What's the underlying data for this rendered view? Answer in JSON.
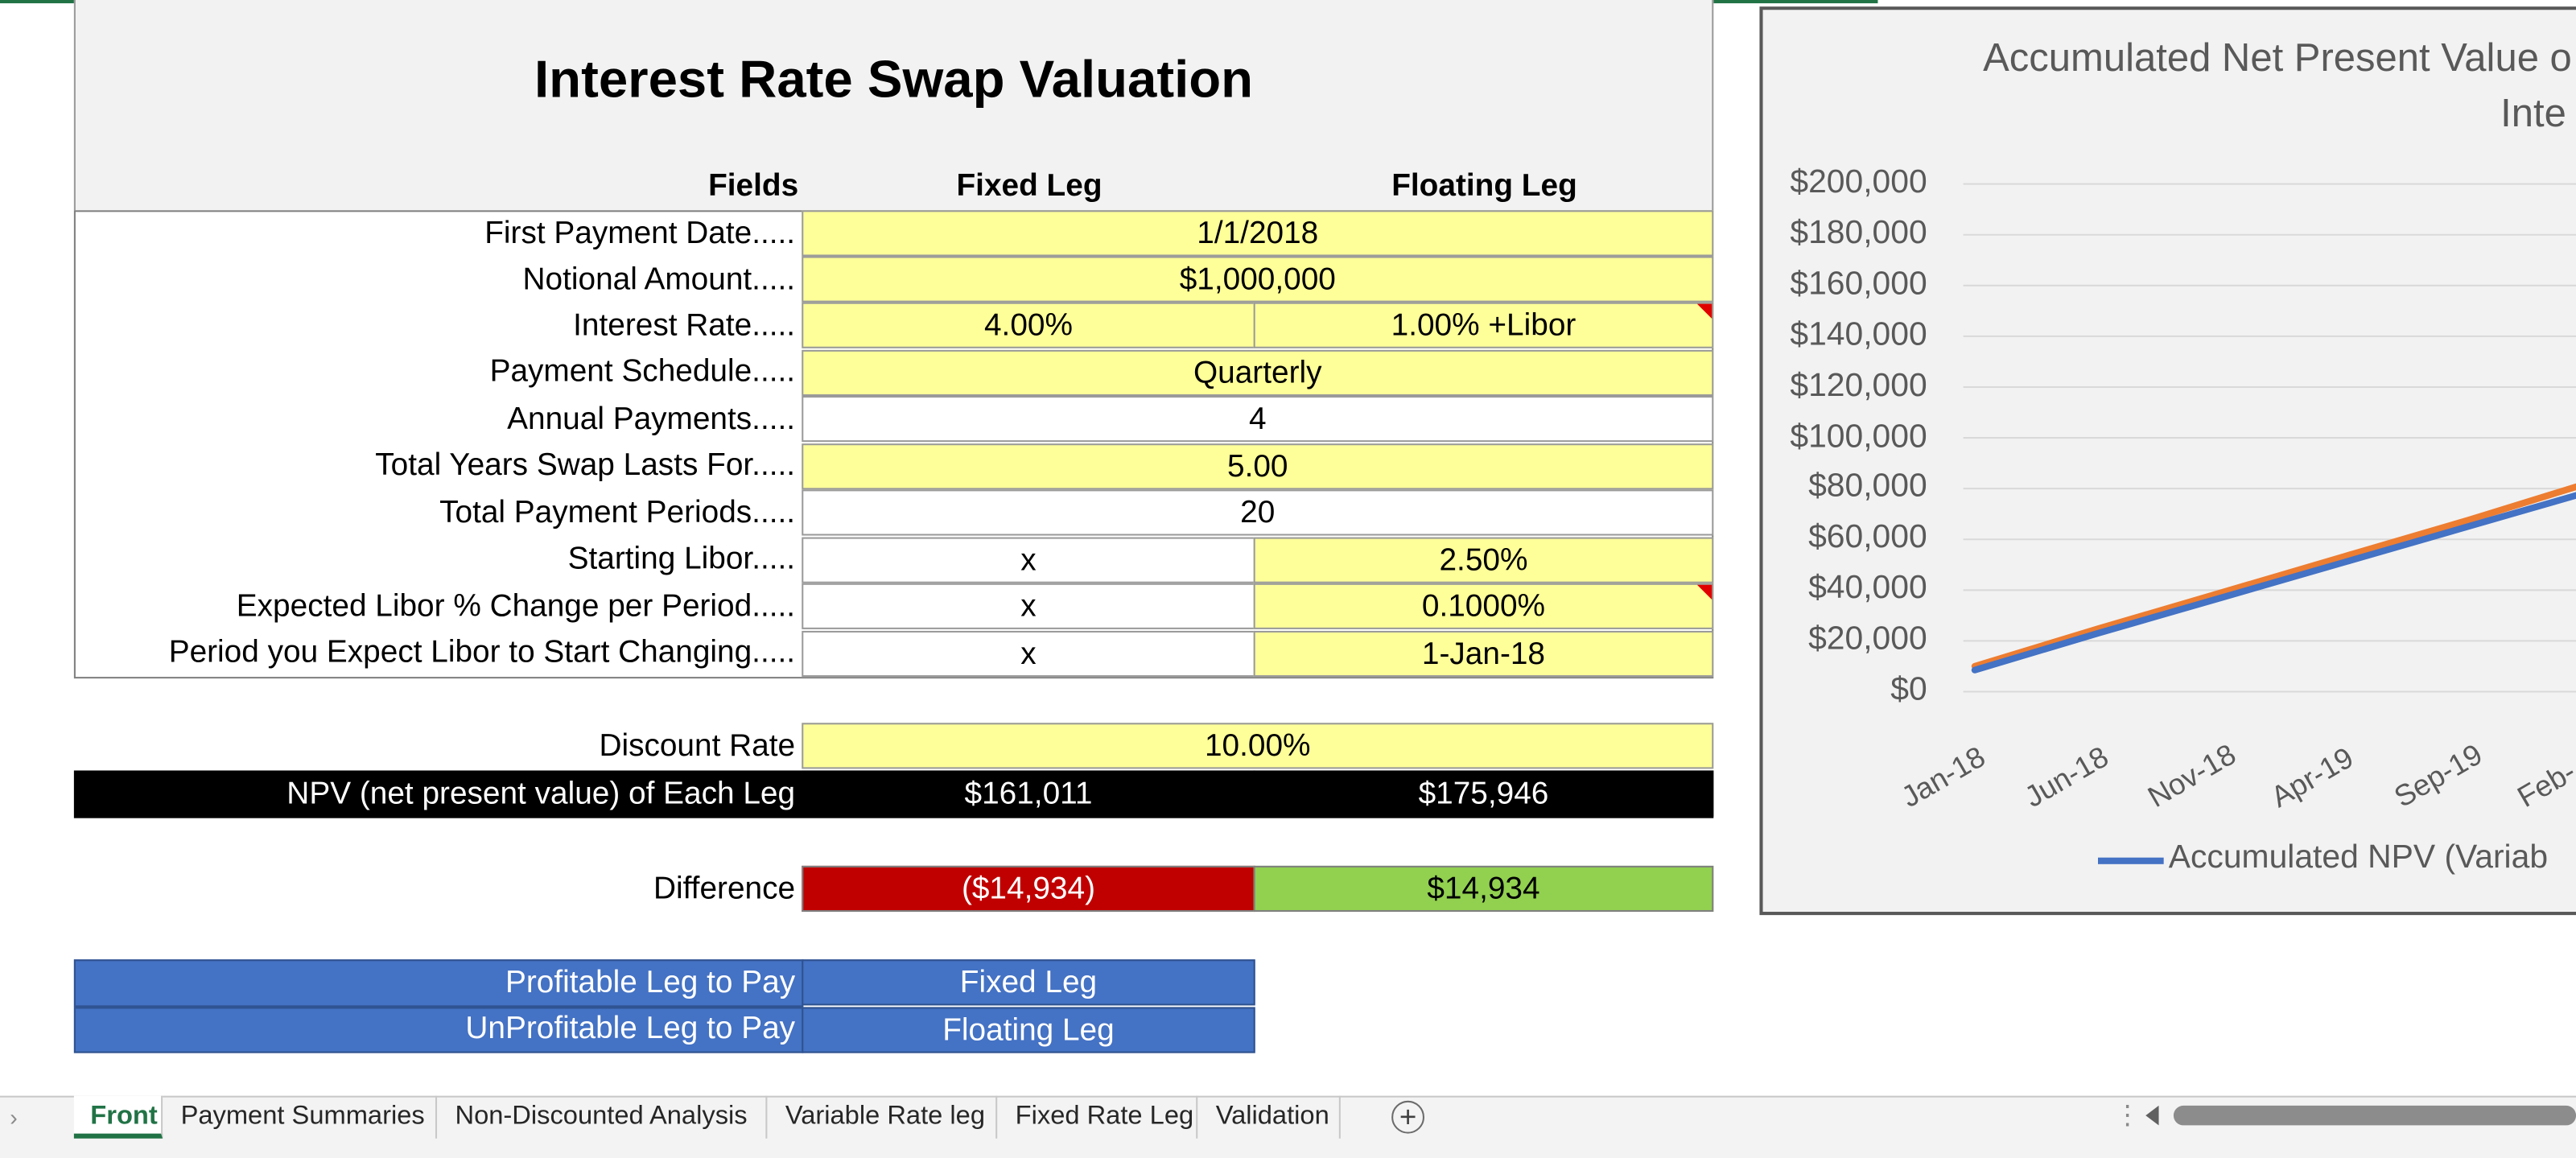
{
  "sheet": {
    "title": "Interest Rate Swap Valuation",
    "headers": {
      "fields": "Fields",
      "fixed": "Fixed Leg",
      "floating": "Floating Leg"
    },
    "rows": [
      {
        "label": "First Payment Date.....",
        "span": "1/1/2018"
      },
      {
        "label": "Notional Amount.....",
        "span": "$1,000,000"
      },
      {
        "label": "Interest Rate.....",
        "fixed": "4.00%",
        "floating": "1.00% +Libor"
      },
      {
        "label": "Payment Schedule.....",
        "span": "Quarterly"
      },
      {
        "label": "Annual Payments.....",
        "span": "4"
      },
      {
        "label": "Total Years Swap Lasts For.....",
        "span": "5.00"
      },
      {
        "label": "Total Payment Periods.....",
        "span": "20"
      },
      {
        "label": "Starting Libor.....",
        "fixed": "x",
        "floating": "2.50%"
      },
      {
        "label": "Expected Libor % Change per Period.....",
        "fixed": "x",
        "floating": "0.1000%"
      },
      {
        "label": "Period you Expect Libor to Start Changing.....",
        "fixed": "x",
        "floating": "1-Jan-18"
      }
    ],
    "discount": {
      "label": "Discount Rate",
      "value": "10.00%"
    },
    "npv": {
      "label": "NPV (net present value) of Each Leg",
      "fixed": "$161,011",
      "floating": "$175,946"
    },
    "difference": {
      "label": "Difference",
      "fixed": "($14,934)",
      "floating": "$14,934"
    },
    "profitable": {
      "label": "Profitable Leg to Pay",
      "value": "Fixed Leg"
    },
    "unprofitable": {
      "label": "UnProfitable Leg to Pay",
      "value": "Floating Leg"
    },
    "colors": {
      "yellow": "#ffff99",
      "red": "#c00000",
      "green": "#92d050",
      "blue": "#4472c4",
      "black": "#000000"
    }
  },
  "chart_data": {
    "type": "line",
    "title_line1": "Accumulated Net Present Value o",
    "title_line2": "Inte",
    "y_ticks": [
      "$200,000",
      "$180,000",
      "$160,000",
      "$140,000",
      "$120,000",
      "$100,000",
      "$80,000",
      "$60,000",
      "$40,000",
      "$20,000",
      "$0"
    ],
    "ylim": [
      0,
      200000
    ],
    "categories": [
      "Jan-18",
      "Jun-18",
      "Nov-18",
      "Apr-19",
      "Sep-19",
      "Feb-"
    ],
    "series": [
      {
        "name": "Accumulated NPV (Variab",
        "color": "#4472c4",
        "values": [
          8500,
          23000,
          37000,
          51000,
          65000,
          79000
        ]
      },
      {
        "color": "#ed7d31",
        "values": [
          10000,
          24800,
          39000,
          53300,
          67500,
          82500
        ]
      }
    ],
    "grid": true,
    "legend_position": "bottom"
  },
  "tabs": {
    "items": [
      "Front",
      "Payment Summaries",
      "Non-Discounted Analysis",
      "Variable Rate leg",
      "Fixed Rate Leg",
      "Validation"
    ],
    "active": "Front",
    "add_icon": "plus-circle-icon"
  }
}
